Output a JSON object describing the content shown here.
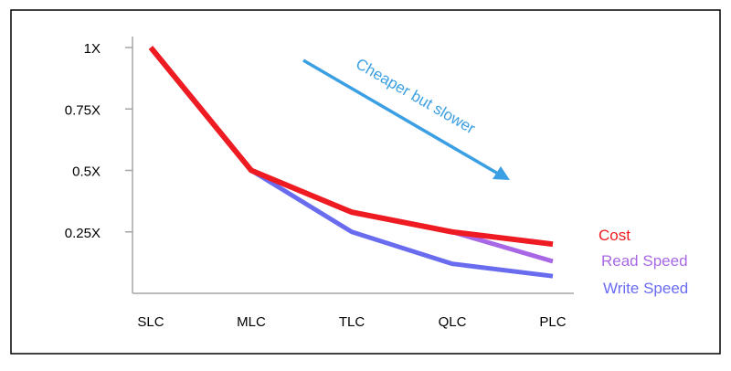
{
  "chart_data": {
    "type": "line",
    "categories": [
      "SLC",
      "MLC",
      "TLC",
      "QLC",
      "PLC"
    ],
    "yticks": [
      {
        "value": 1,
        "label": "1X"
      },
      {
        "value": 0.75,
        "label": "0.75X"
      },
      {
        "value": 0.5,
        "label": "0.5X"
      },
      {
        "value": 0.25,
        "label": "0.25X"
      }
    ],
    "ylim": [
      0,
      1
    ],
    "grid": false,
    "legend_position": "right",
    "annotation": "Cheaper but slower",
    "series": [
      {
        "name": "Write Speed",
        "values": [
          1.0,
          0.5,
          0.25,
          0.12,
          0.07
        ],
        "color": "#6a6cf0"
      },
      {
        "name": "Read Speed",
        "values": [
          1.0,
          0.5,
          0.33,
          0.25,
          0.13
        ],
        "color": "#a868e6"
      },
      {
        "name": "Cost",
        "values": [
          1.0,
          0.5,
          0.33,
          0.25,
          0.2
        ],
        "color": "#ee1b22"
      }
    ],
    "colors": {
      "axis": "#a6a6a6",
      "border": "#000000",
      "annotation": "#3b9fe3",
      "text": "#000000"
    }
  }
}
